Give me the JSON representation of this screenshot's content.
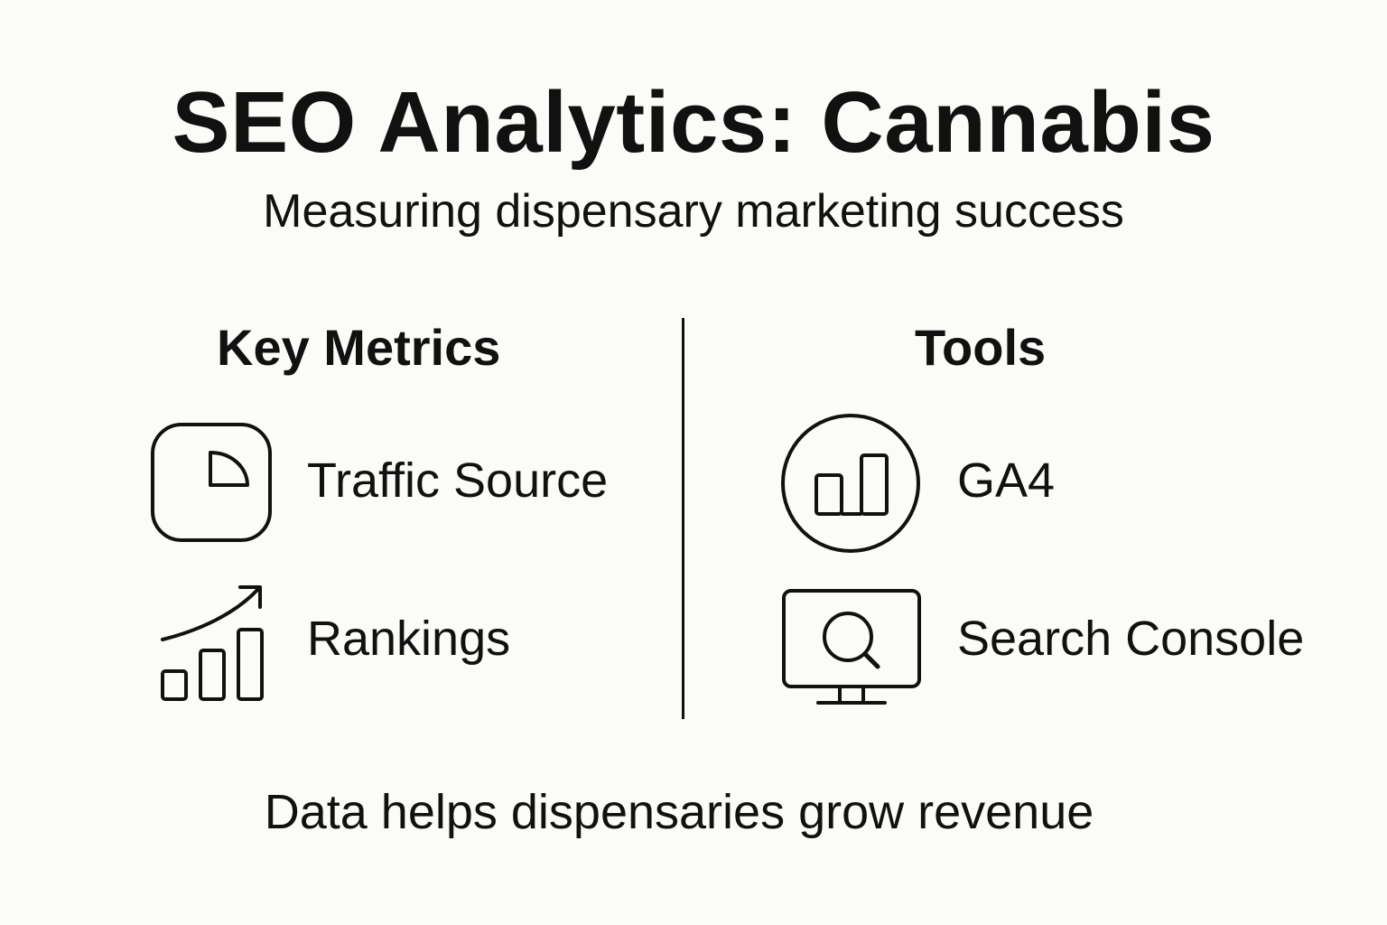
{
  "header": {
    "title": "SEO Analytics: Cannabis",
    "subtitle": "Measuring dispensary marketing success"
  },
  "left_column": {
    "heading": "Key Metrics",
    "items": [
      {
        "label": "Traffic Source",
        "icon": "pie-chart-icon"
      },
      {
        "label": "Rankings",
        "icon": "growth-chart-icon"
      }
    ]
  },
  "right_column": {
    "heading": "Tools",
    "items": [
      {
        "label": "GA4",
        "icon": "bar-chart-icon"
      },
      {
        "label": "Search Console",
        "icon": "monitor-search-icon"
      }
    ]
  },
  "footer": {
    "text": "Data helps dispensaries grow revenue"
  },
  "colors": {
    "background": "#fbfbf7",
    "ink": "#111111"
  }
}
